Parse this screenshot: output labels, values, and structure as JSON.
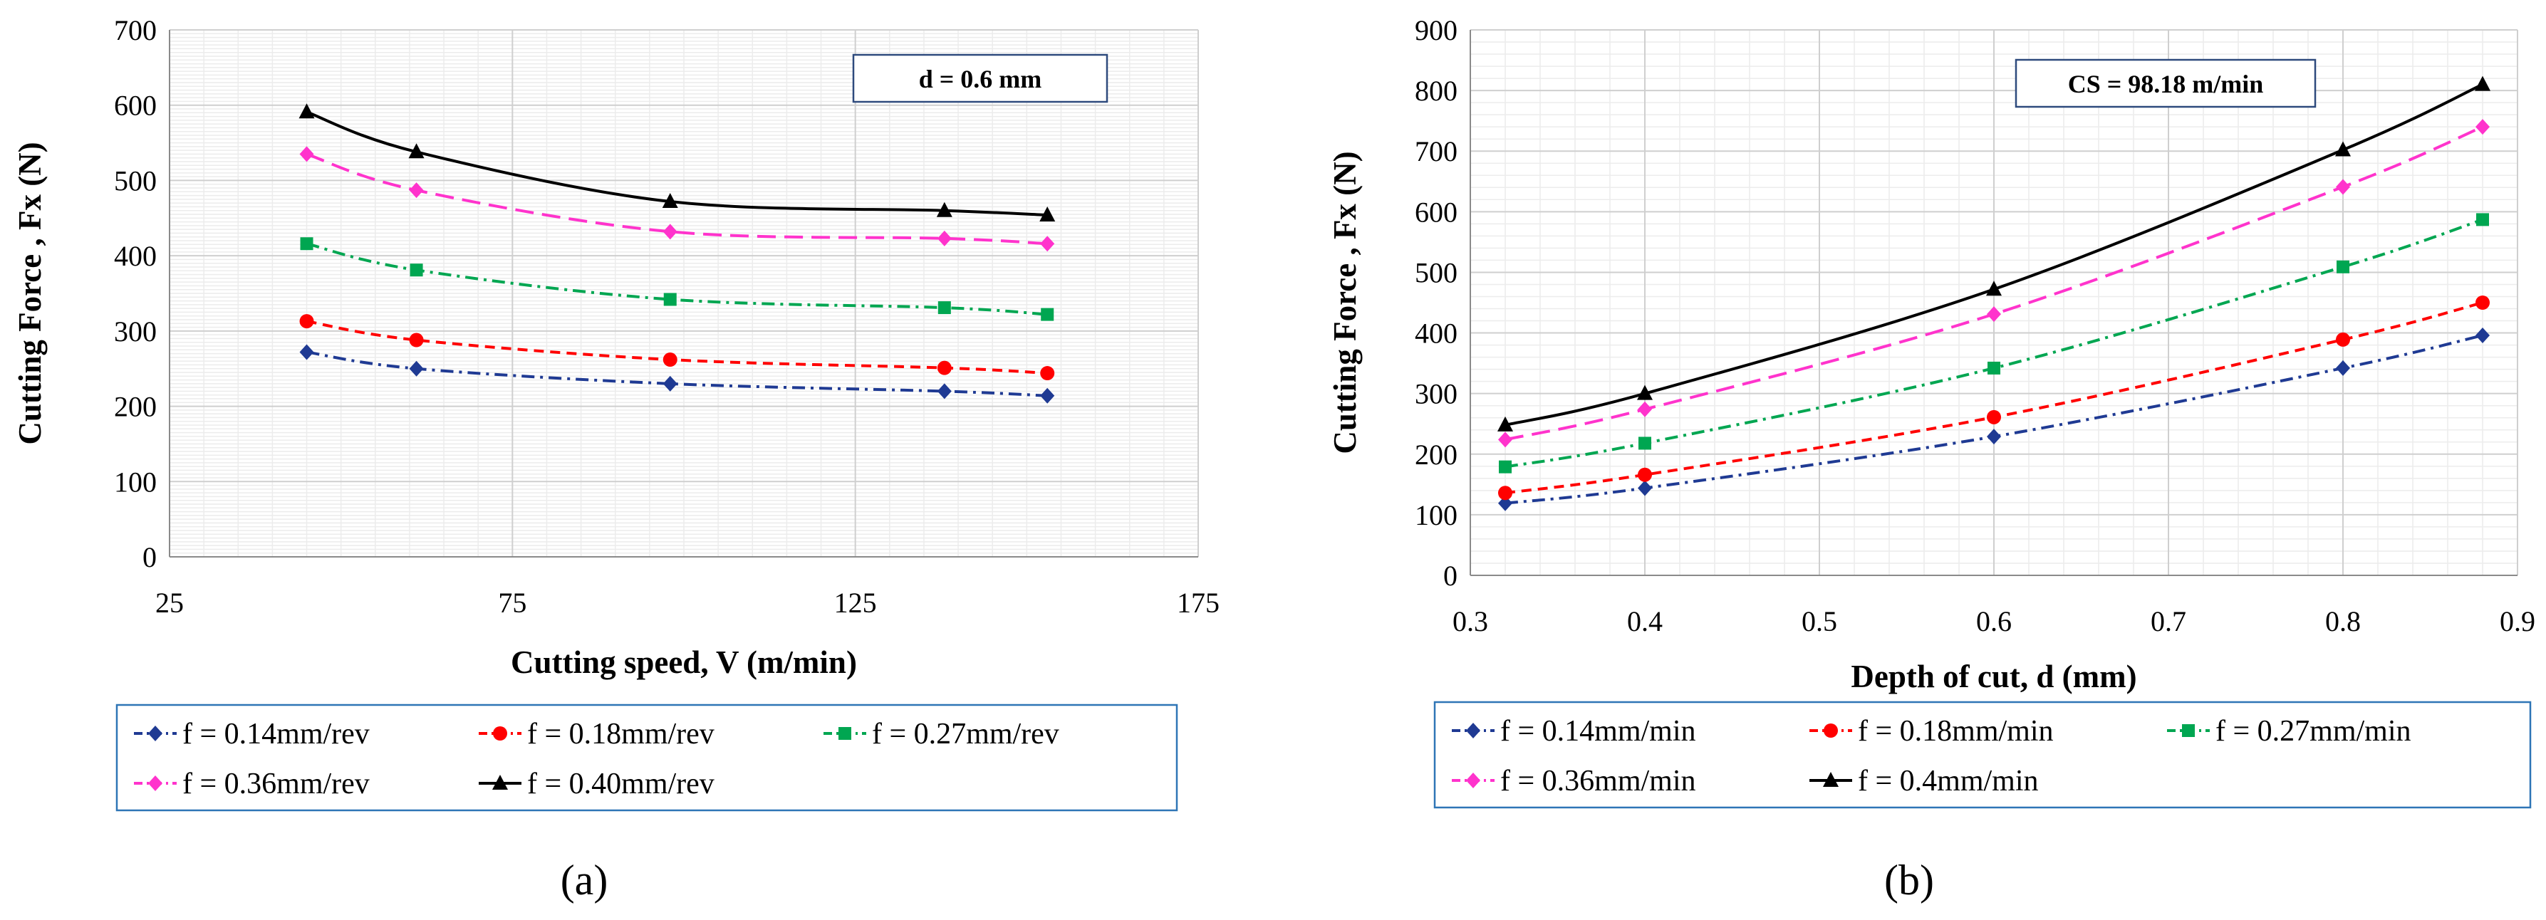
{
  "chart_data": [
    {
      "type": "line",
      "panel_label": "(a)",
      "xlabel": "Cutting speed, V (m/min)",
      "ylabel": "Cutting Force , Fx (N)",
      "xlim": [
        25,
        175
      ],
      "ylim": [
        0,
        700
      ],
      "xticks": [
        25,
        75,
        125,
        175
      ],
      "yticks": [
        0,
        100,
        200,
        300,
        400,
        500,
        600,
        700
      ],
      "annotation": "d = 0.6 mm",
      "x": [
        45,
        61,
        98,
        138,
        153
      ],
      "series": [
        {
          "name": "f = 0.14mm/rev",
          "color": "#1f3a93",
          "marker": "diamond",
          "dash": "dashdot",
          "values": [
            272,
            250,
            230,
            220,
            214
          ]
        },
        {
          "name": "f = 0.18mm/rev",
          "color": "#ff0000",
          "marker": "circle",
          "dash": "dash",
          "values": [
            313,
            288,
            262,
            251,
            244
          ]
        },
        {
          "name": "f = 0.27mm/rev",
          "color": "#00a651",
          "marker": "square",
          "dash": "dashdot",
          "values": [
            416,
            381,
            342,
            331,
            322
          ]
        },
        {
          "name": "f = 0.36mm/rev",
          "color": "#ff33cc",
          "marker": "diamond",
          "dash": "longdash",
          "values": [
            535,
            487,
            432,
            423,
            416
          ]
        },
        {
          "name": "f = 0.40mm/rev",
          "color": "#000000",
          "marker": "triangle",
          "dash": "solid",
          "values": [
            591,
            538,
            472,
            460,
            454
          ]
        }
      ]
    },
    {
      "type": "line",
      "panel_label": "(b)",
      "xlabel": "Depth of cut, d (mm)",
      "ylabel": "Cutting Force , Fx (N)",
      "xlim": [
        0.3,
        0.9
      ],
      "ylim": [
        0,
        900
      ],
      "xticks": [
        0.3,
        0.4,
        0.5,
        0.6,
        0.7,
        0.8,
        0.9
      ],
      "yticks": [
        0,
        100,
        200,
        300,
        400,
        500,
        600,
        700,
        800,
        900
      ],
      "annotation": "CS = 98.18 m/min",
      "x": [
        0.32,
        0.4,
        0.6,
        0.8,
        0.88
      ],
      "series": [
        {
          "name": "f = 0.14mm/min",
          "color": "#1f3a93",
          "marker": "diamond",
          "dash": "dashdot",
          "values": [
            119,
            144,
            229,
            342,
            396
          ]
        },
        {
          "name": "f = 0.18mm/min",
          "color": "#ff0000",
          "marker": "circle",
          "dash": "dash",
          "values": [
            136,
            166,
            261,
            389,
            450
          ]
        },
        {
          "name": "f = 0.27mm/min",
          "color": "#00a651",
          "marker": "square",
          "dash": "dashdot",
          "values": [
            179,
            218,
            342,
            509,
            587
          ]
        },
        {
          "name": "f = 0.36mm/min",
          "color": "#ff33cc",
          "marker": "diamond",
          "dash": "longdash",
          "values": [
            224,
            274,
            431,
            641,
            740
          ]
        },
        {
          "name": "f = 0.4mm/min",
          "color": "#000000",
          "marker": "triangle",
          "dash": "solid",
          "values": [
            248,
            300,
            472,
            702,
            810
          ]
        }
      ]
    }
  ]
}
